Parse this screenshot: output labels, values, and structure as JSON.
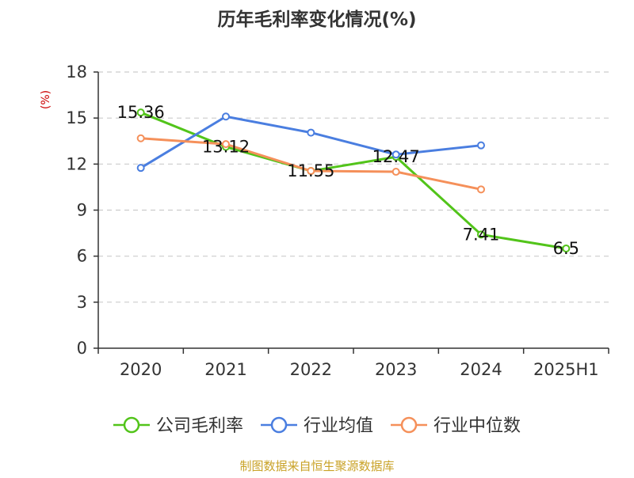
{
  "chart_data": {
    "type": "line",
    "title": "历年毛利率变化情况(%)",
    "ylabel": "(%)",
    "xlabel": "",
    "categories": [
      "2020",
      "2021",
      "2022",
      "2023",
      "2024",
      "2025H1"
    ],
    "ylim": [
      0,
      18
    ],
    "yticks": [
      0,
      3,
      6,
      9,
      12,
      15,
      18
    ],
    "grid": true,
    "legend_position": "bottom",
    "series": [
      {
        "name": "公司毛利率",
        "color": "#52c41a",
        "values": [
          15.36,
          13.12,
          11.55,
          12.47,
          7.41,
          6.5
        ],
        "labels": [
          "15.36",
          "13.12",
          "11.55",
          "12.47",
          "7.41",
          "6.5"
        ]
      },
      {
        "name": "行业均值",
        "color": "#4a7ee0",
        "values": [
          11.75,
          15.1,
          14.05,
          12.62,
          13.22,
          null
        ]
      },
      {
        "name": "行业中位数",
        "color": "#f5905a",
        "values": [
          13.68,
          13.3,
          11.55,
          11.5,
          10.35,
          null
        ]
      }
    ]
  },
  "source": {
    "text": "制图数据来自恒生聚源数据库",
    "color": "#c9a227"
  },
  "colors": {
    "ylabel": "#cc0000",
    "axis": "#333333",
    "grid": "#cccccc"
  }
}
